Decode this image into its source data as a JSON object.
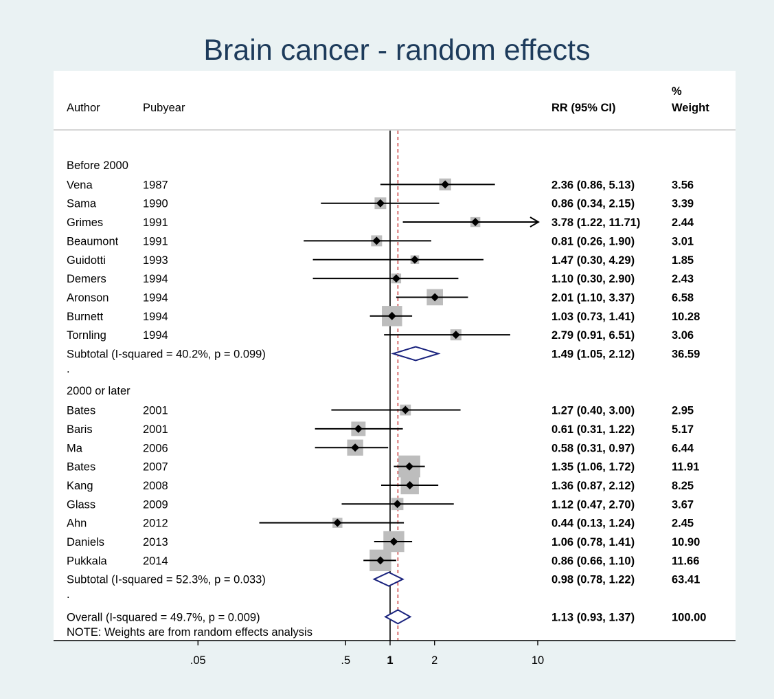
{
  "chart_data": {
    "type": "forest",
    "title": "Brain cancer - random effects",
    "headers": {
      "author": "Author",
      "pubyear": "Pubyear",
      "rr": "RR (95% CI)",
      "weight_line1": "%",
      "weight_line2": "Weight"
    },
    "x_scale": "log",
    "xlim": [
      0.022,
      24
    ],
    "xticks": [
      {
        "value": 0.05,
        "label": ".05"
      },
      {
        "value": 0.5,
        "label": ".5"
      },
      {
        "value": 1,
        "label": "1",
        "bold": true
      },
      {
        "value": 2,
        "label": "2"
      },
      {
        "value": 10,
        "label": "10"
      }
    ],
    "null_line": 1,
    "overall_line": 1.13,
    "groups": [
      {
        "label": "Before 2000",
        "studies": [
          {
            "author": "Vena",
            "year": "1987",
            "rr": 2.36,
            "lo": 0.86,
            "hi": 5.13,
            "text": "2.36 (0.86, 5.13)",
            "weight": "3.56",
            "w": 3.56
          },
          {
            "author": "Sama",
            "year": "1990",
            "rr": 0.86,
            "lo": 0.34,
            "hi": 2.15,
            "text": "0.86 (0.34, 2.15)",
            "weight": "3.39",
            "w": 3.39
          },
          {
            "author": "Grimes",
            "year": "1991",
            "rr": 3.78,
            "lo": 1.22,
            "hi": 11.71,
            "text": "3.78 (1.22, 11.71)",
            "weight": "2.44",
            "w": 2.44,
            "arrow": true
          },
          {
            "author": "Beaumont",
            "year": "1991",
            "rr": 0.81,
            "lo": 0.26,
            "hi": 1.9,
            "text": "0.81 (0.26, 1.90)",
            "weight": "3.01",
            "w": 3.01
          },
          {
            "author": "Guidotti",
            "year": "1993",
            "rr": 1.47,
            "lo": 0.3,
            "hi": 4.29,
            "text": "1.47 (0.30, 4.29)",
            "weight": "1.85",
            "w": 1.85
          },
          {
            "author": "Demers",
            "year": "1994",
            "rr": 1.1,
            "lo": 0.3,
            "hi": 2.9,
            "text": "1.10 (0.30, 2.90)",
            "weight": "2.43",
            "w": 2.43
          },
          {
            "author": "Aronson",
            "year": "1994",
            "rr": 2.01,
            "lo": 1.1,
            "hi": 3.37,
            "text": "2.01 (1.10, 3.37)",
            "weight": "6.58",
            "w": 6.58
          },
          {
            "author": "Burnett",
            "year": "1994",
            "rr": 1.03,
            "lo": 0.73,
            "hi": 1.41,
            "text": "1.03 (0.73, 1.41)",
            "weight": "10.28",
            "w": 10.28
          },
          {
            "author": "Tornling",
            "year": "1994",
            "rr": 2.79,
            "lo": 0.91,
            "hi": 6.51,
            "text": "2.79 (0.91, 6.51)",
            "weight": "3.06",
            "w": 3.06
          }
        ],
        "subtotal": {
          "label": "Subtotal  (I-squared = 40.2%, p = 0.099)",
          "rr": 1.49,
          "lo": 1.05,
          "hi": 2.12,
          "text": "1.49 (1.05, 2.12)",
          "weight": "36.59"
        }
      },
      {
        "label": "2000 or later",
        "studies": [
          {
            "author": "Bates",
            "year": "2001",
            "rr": 1.27,
            "lo": 0.4,
            "hi": 3.0,
            "text": "1.27 (0.40, 3.00)",
            "weight": "2.95",
            "w": 2.95
          },
          {
            "author": "Baris",
            "year": "2001",
            "rr": 0.61,
            "lo": 0.31,
            "hi": 1.22,
            "text": "0.61 (0.31, 1.22)",
            "weight": "5.17",
            "w": 5.17
          },
          {
            "author": "Ma",
            "year": "2006",
            "rr": 0.58,
            "lo": 0.31,
            "hi": 0.97,
            "text": "0.58 (0.31, 0.97)",
            "weight": "6.44",
            "w": 6.44
          },
          {
            "author": "Bates",
            "year": "2007",
            "rr": 1.35,
            "lo": 1.06,
            "hi": 1.72,
            "text": "1.35 (1.06, 1.72)",
            "weight": "11.91",
            "w": 11.91
          },
          {
            "author": "Kang",
            "year": "2008",
            "rr": 1.36,
            "lo": 0.87,
            "hi": 2.12,
            "text": "1.36 (0.87, 2.12)",
            "weight": "8.25",
            "w": 8.25
          },
          {
            "author": "Glass",
            "year": "2009",
            "rr": 1.12,
            "lo": 0.47,
            "hi": 2.7,
            "text": "1.12 (0.47, 2.70)",
            "weight": "3.67",
            "w": 3.67
          },
          {
            "author": "Ahn",
            "year": "2012",
            "rr": 0.44,
            "lo": 0.13,
            "hi": 1.24,
            "text": "0.44 (0.13, 1.24)",
            "weight": "2.45",
            "w": 2.45
          },
          {
            "author": "Daniels",
            "year": "2013",
            "rr": 1.06,
            "lo": 0.78,
            "hi": 1.41,
            "text": "1.06 (0.78, 1.41)",
            "weight": "10.90",
            "w": 10.9
          },
          {
            "author": "Pukkala",
            "year": "2014",
            "rr": 0.86,
            "lo": 0.66,
            "hi": 1.1,
            "text": "0.86 (0.66, 1.10)",
            "weight": "11.66",
            "w": 11.66
          }
        ],
        "subtotal": {
          "label": "Subtotal  (I-squared = 52.3%, p = 0.033)",
          "rr": 0.98,
          "lo": 0.78,
          "hi": 1.22,
          "text": "0.98 (0.78, 1.22)",
          "weight": "63.41"
        }
      }
    ],
    "separator": ".",
    "overall": {
      "label": "Overall  (I-squared = 49.7%, p = 0.009)",
      "rr": 1.13,
      "lo": 0.93,
      "hi": 1.37,
      "text": "1.13 (0.93, 1.37)",
      "weight": "100.00"
    },
    "note": "NOTE: Weights are from random effects analysis"
  },
  "colors": {
    "background": "#eaf2f3",
    "plot": "#ffffff",
    "title": "#1d3b5b",
    "diamond": "#1a237e",
    "box": "#bdbdbd",
    "dashed": "#c62828"
  }
}
